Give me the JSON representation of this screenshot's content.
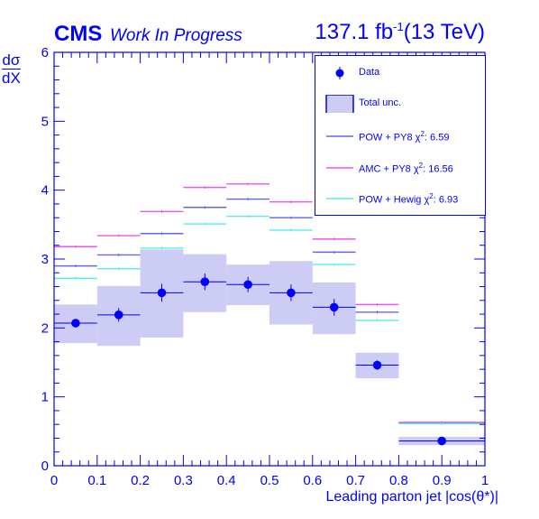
{
  "header": {
    "experiment": "CMS",
    "status": "Work In Progress",
    "lumi_value": "137.1 fb",
    "lumi_exp": "-1",
    "lumi_energy": "(13 TeV)"
  },
  "axes": {
    "ylabel_num": "dσ",
    "ylabel_den": "dX",
    "xlabel": "Leading parton  jet |cos(θ*)|"
  },
  "legend": {
    "data": "Data",
    "total_unc": "Total unc.",
    "pow_py8": "POW + PY8",
    "pow_py8_chi": "6.59",
    "amc_py8": "AMC + PY8",
    "amc_py8_chi": "16.56",
    "pow_hw": "POW + Hewig",
    "pow_hw_chi": "6.93",
    "chi_symbol": "χ",
    "chi_exp": "2"
  },
  "colors": {
    "axis": "#0000ff",
    "data": "#0000ff",
    "band": "#ccccf5",
    "pow_py8": "#6666ee",
    "amc_py8": "#ee55ee",
    "pow_hw": "#55eeee"
  },
  "chart_data": {
    "type": "line",
    "xlim": [
      0,
      1
    ],
    "ylim": [
      0,
      6
    ],
    "x_ticks": [
      "0",
      "0.1",
      "0.2",
      "0.3",
      "0.4",
      "0.5",
      "0.6",
      "0.7",
      "0.8",
      "0.9",
      "1"
    ],
    "y_ticks": [
      "0",
      "1",
      "2",
      "3",
      "4",
      "5",
      "6"
    ],
    "bins": [
      [
        0.0,
        0.1
      ],
      [
        0.1,
        0.2
      ],
      [
        0.2,
        0.3
      ],
      [
        0.3,
        0.4
      ],
      [
        0.4,
        0.5
      ],
      [
        0.5,
        0.6
      ],
      [
        0.6,
        0.7
      ],
      [
        0.7,
        0.8
      ],
      [
        0.8,
        1.0
      ]
    ],
    "data": {
      "name": "Data",
      "values": [
        2.07,
        2.19,
        2.51,
        2.67,
        2.63,
        2.51,
        2.3,
        1.46,
        0.36
      ],
      "errors": [
        0.06,
        0.1,
        0.13,
        0.12,
        0.11,
        0.12,
        0.12,
        0.07,
        0.02
      ]
    },
    "band": {
      "name": "Total unc.",
      "low": [
        1.78,
        1.74,
        1.86,
        2.23,
        2.33,
        2.05,
        1.91,
        1.27,
        0.3
      ],
      "high": [
        2.34,
        2.61,
        3.14,
        3.07,
        2.92,
        2.97,
        2.66,
        1.64,
        0.42
      ]
    },
    "series": [
      {
        "name": "POW + PY8",
        "values": [
          2.9,
          3.06,
          3.37,
          3.75,
          3.87,
          3.6,
          3.1,
          2.23,
          0.62
        ]
      },
      {
        "name": "AMC + PY8",
        "values": [
          3.18,
          3.34,
          3.69,
          4.04,
          4.09,
          3.83,
          3.29,
          2.34,
          0.63
        ]
      },
      {
        "name": "POW + Hewig",
        "values": [
          2.72,
          2.86,
          3.16,
          3.51,
          3.62,
          3.42,
          2.92,
          2.11,
          0.61
        ]
      }
    ]
  }
}
